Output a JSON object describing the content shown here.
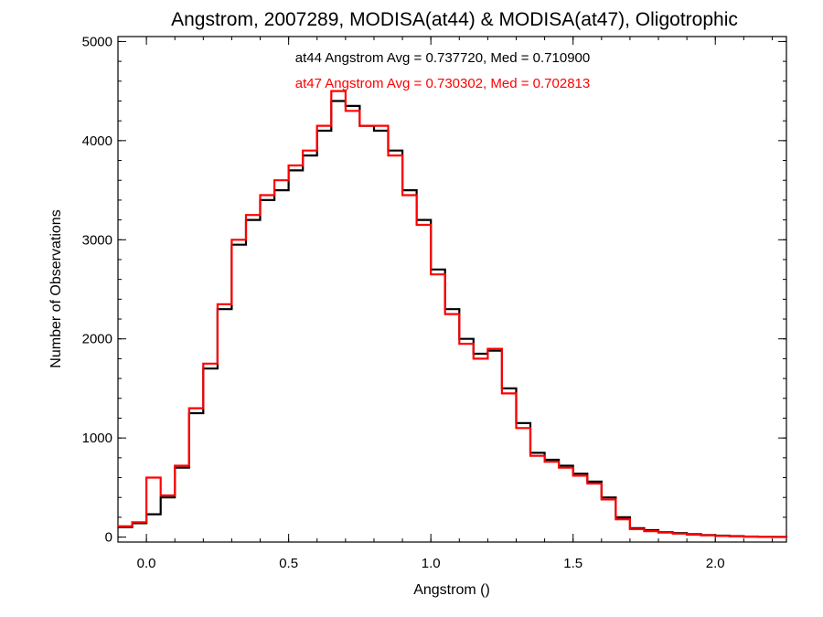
{
  "chart_data": {
    "type": "line",
    "title": "Angstrom, 2007289, MODISA(at44) & MODISA(at47), Oligotrophic",
    "xlabel": "Angstrom ()",
    "ylabel": "Number of Observations",
    "xlim": [
      -0.1,
      2.25
    ],
    "ylim": [
      -50,
      5050
    ],
    "x_ticks": [
      {
        "value": 0.0,
        "label": "0.0"
      },
      {
        "value": 0.5,
        "label": "0.5"
      },
      {
        "value": 1.0,
        "label": "1.0"
      },
      {
        "value": 1.5,
        "label": "1.5"
      },
      {
        "value": 2.0,
        "label": "2.0"
      }
    ],
    "y_ticks": [
      {
        "value": 0,
        "label": "0"
      },
      {
        "value": 1000,
        "label": "1000"
      },
      {
        "value": 2000,
        "label": "2000"
      },
      {
        "value": 3000,
        "label": "3000"
      },
      {
        "value": 4000,
        "label": "4000"
      },
      {
        "value": 5000,
        "label": "5000"
      }
    ],
    "annotations": [
      {
        "text": "at44 Angstrom Avg = 0.737720, Med = 0.710900",
        "color": "#000000"
      },
      {
        "text": "at47 Angstrom Avg = 0.730302, Med = 0.702813",
        "color": "#ff0000"
      }
    ],
    "series": [
      {
        "color": "#000000",
        "x": [
          -0.1,
          -0.05,
          0.0,
          0.05,
          0.1,
          0.15,
          0.2,
          0.25,
          0.3,
          0.35,
          0.4,
          0.45,
          0.5,
          0.55,
          0.6,
          0.65,
          0.7,
          0.75,
          0.8,
          0.85,
          0.9,
          0.95,
          1.0,
          1.05,
          1.1,
          1.15,
          1.2,
          1.25,
          1.3,
          1.35,
          1.4,
          1.45,
          1.5,
          1.55,
          1.6,
          1.65,
          1.7,
          1.75,
          1.8,
          1.85,
          1.9,
          1.95,
          2.0,
          2.05,
          2.1,
          2.15,
          2.2,
          2.25
        ],
        "y": [
          100,
          140,
          230,
          400,
          700,
          1250,
          1700,
          2300,
          2950,
          3200,
          3400,
          3500,
          3700,
          3850,
          4100,
          4400,
          4350,
          4150,
          4100,
          3900,
          3500,
          3200,
          2700,
          2300,
          2000,
          1850,
          1880,
          1500,
          1150,
          850,
          780,
          720,
          640,
          560,
          400,
          200,
          90,
          70,
          50,
          40,
          30,
          20,
          15,
          10,
          5,
          3,
          2,
          0
        ]
      },
      {
        "color": "#ff0000",
        "x": [
          -0.1,
          -0.05,
          0.0,
          0.05,
          0.1,
          0.15,
          0.2,
          0.25,
          0.3,
          0.35,
          0.4,
          0.45,
          0.5,
          0.55,
          0.6,
          0.65,
          0.7,
          0.75,
          0.8,
          0.85,
          0.9,
          0.95,
          1.0,
          1.05,
          1.1,
          1.15,
          1.2,
          1.25,
          1.3,
          1.35,
          1.4,
          1.45,
          1.5,
          1.55,
          1.6,
          1.65,
          1.7,
          1.75,
          1.8,
          1.85,
          1.9,
          1.95,
          2.0,
          2.05,
          2.1,
          2.15,
          2.2,
          2.25
        ],
        "y": [
          110,
          150,
          600,
          420,
          720,
          1300,
          1750,
          2350,
          3000,
          3250,
          3450,
          3600,
          3750,
          3900,
          4150,
          4500,
          4300,
          4150,
          4150,
          3850,
          3450,
          3150,
          2650,
          2250,
          1950,
          1800,
          1900,
          1450,
          1100,
          820,
          760,
          700,
          620,
          540,
          380,
          180,
          80,
          60,
          45,
          35,
          25,
          18,
          12,
          8,
          4,
          2,
          1,
          0
        ]
      }
    ]
  }
}
